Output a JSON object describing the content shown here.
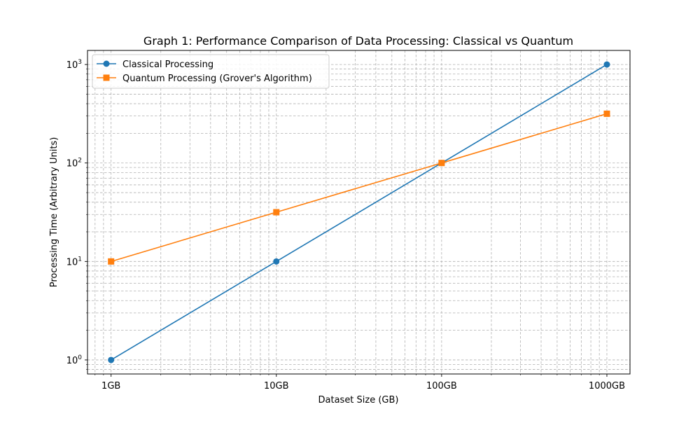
{
  "chart_data": {
    "type": "line",
    "title": "Graph 1: Performance Comparison of Data Processing: Classical vs Quantum",
    "xlabel": "Dataset Size (GB)",
    "ylabel": "Processing Time (Arbitrary Units)",
    "x": [
      1,
      10,
      100,
      1000
    ],
    "x_tick_labels": [
      "1GB",
      "10GB",
      "100GB",
      "1000GB"
    ],
    "xscale": "log",
    "yscale": "log",
    "xlim": [
      0.72,
      1380
    ],
    "ylim": [
      0.72,
      1390
    ],
    "y_ticks": [
      1,
      10,
      100,
      1000
    ],
    "y_tick_base": "10",
    "y_tick_exponents": [
      "0",
      "1",
      "2",
      "3"
    ],
    "grid": "both (major and minor), dashed",
    "legend_position": "top-left",
    "series": [
      {
        "name": "Classical Processing",
        "values": [
          1,
          10,
          100,
          1000
        ],
        "color": "#1f77b4",
        "marker": "circle"
      },
      {
        "name": "Quantum Processing (Grover's Algorithm)",
        "values": [
          10,
          31.62,
          100,
          316.2
        ],
        "color": "#ff7f0e",
        "marker": "square"
      }
    ]
  }
}
